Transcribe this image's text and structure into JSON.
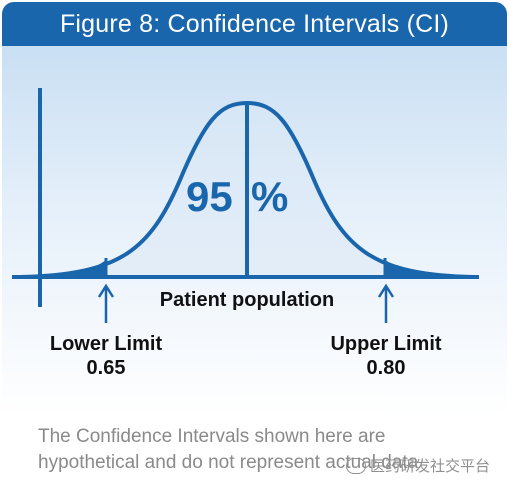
{
  "colors": {
    "primary": "#1a66ad",
    "shade": "#9cc2e5",
    "text": "#111111",
    "note": "#8a8a8a"
  },
  "figure": {
    "title": "Figure 8: Confidence Intervals (CI)",
    "center_value": "95",
    "center_unit": "%",
    "x_axis_label": "Patient population",
    "lower_limit": {
      "label": "Lower Limit",
      "value": "0.65"
    },
    "upper_limit": {
      "label": "Upper Limit",
      "value": "0.80"
    }
  },
  "footnote": {
    "line1": "The Confidence Intervals shown here are",
    "line2": "hypothetical and do not represent actual data"
  },
  "watermark": {
    "text": "医药研发社交平台",
    "icon": "chat-bubble-icon"
  }
}
